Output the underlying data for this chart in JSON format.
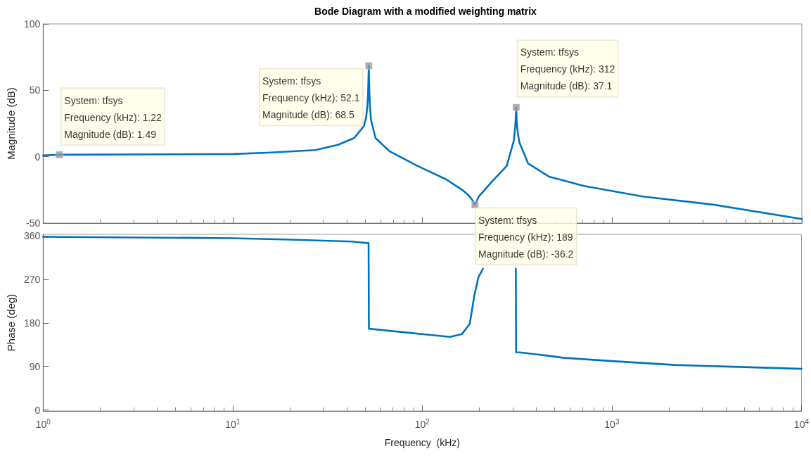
{
  "chart_data": [
    {
      "type": "line",
      "title": "Bode Diagram with a modified weighting matrix",
      "ylabel": "Magnitude (dB)",
      "log": "x",
      "grid": false,
      "marker": "none",
      "line_style": "solid",
      "tick_labels": "y",
      "xlim": [
        1,
        10000
      ],
      "xticks": [
        {
          "value": 1,
          "label": null
        },
        {
          "value": 10,
          "label": null
        },
        {
          "value": 100,
          "label": null
        },
        {
          "value": 1000,
          "label": null
        },
        {
          "value": 10000,
          "label": null
        }
      ],
      "ylim": [
        -50,
        100
      ],
      "yticks": [
        -50,
        0,
        50,
        100
      ],
      "x": [
        1,
        1.22,
        10,
        15.3,
        27.2,
        35.9,
        43.6,
        49.1,
        50.5,
        51.3,
        51.7,
        52.1,
        52.5,
        52.9,
        53.5,
        56.6,
        67.2,
        94.3,
        133,
        162,
        175,
        184,
        189,
        198,
        235,
        278,
        303,
        308,
        310,
        312,
        314,
        318,
        324,
        360,
        464,
        710,
        1450,
        3370,
        10000
      ],
      "series": [
        {
          "color": "#0072bd",
          "values": [
            1,
            1.5,
            2,
            3,
            5,
            9,
            14,
            23,
            30,
            39,
            48,
            68.5,
            48,
            38,
            28,
            14,
            4,
            -7,
            -17,
            -25,
            -29,
            -33,
            -36.2,
            -30,
            -18,
            -7,
            12,
            22,
            28,
            37.1,
            26,
            18,
            11,
            -5,
            -15,
            -22,
            -30,
            -36,
            -47
          ]
        }
      ],
      "annotations": [
        {
          "text": "System: tfsys\nFrequency (kHz): 1.22\nMagnitude (dB): 1.49",
          "x": 1.22,
          "y": 1.49
        },
        {
          "text": "System: tfsys\nFrequency (kHz): 52.1\nMagnitude (dB): 68.5",
          "x": 52.1,
          "y": 68.5
        },
        {
          "text": "System: tfsys\nFrequency (kHz): 312\nMagnitude (dB): 37.1",
          "x": 312,
          "y": 37.1
        },
        {
          "text": "System: tfsys\nFrequency (kHz): 189\nMagnitude (dB): -36.2",
          "x": 189,
          "y": -36.2
        }
      ]
    },
    {
      "type": "line",
      "xlabel": "Frequency  (kHz)",
      "ylabel": "Phase (deg)",
      "log": "x",
      "grid": false,
      "marker": "none",
      "line_style": "solid",
      "xlim": [
        1,
        10000
      ],
      "xticks": [
        {
          "value": 1,
          "label": "10$^{0}$"
        },
        {
          "value": 10,
          "label": "10$^{1}$"
        },
        {
          "value": 100,
          "label": "10$^{2}$"
        },
        {
          "value": 1000,
          "label": "10$^{3}$"
        },
        {
          "value": 10000,
          "label": "10$^{4}$"
        }
      ],
      "ylim": [
        -2,
        363
      ],
      "yticks": [
        0,
        90,
        180,
        270,
        360
      ],
      "x": [
        1,
        10,
        20,
        30,
        42.8,
        51.3,
        52.1,
        52.3,
        140,
        162,
        178,
        188,
        198,
        209,
        250,
        311.5,
        312.5,
        327,
        464,
        552,
        1000,
        2154,
        4640,
        10000
      ],
      "series": [
        {
          "color": "#0072bd",
          "values": [
            358,
            355,
            352,
            350,
            348,
            345,
            345,
            168,
            151,
            157,
            178,
            236,
            275,
            292,
            null,
            292,
            119,
            119,
            112,
            108,
            101,
            93,
            89,
            85
          ]
        }
      ]
    }
  ]
}
